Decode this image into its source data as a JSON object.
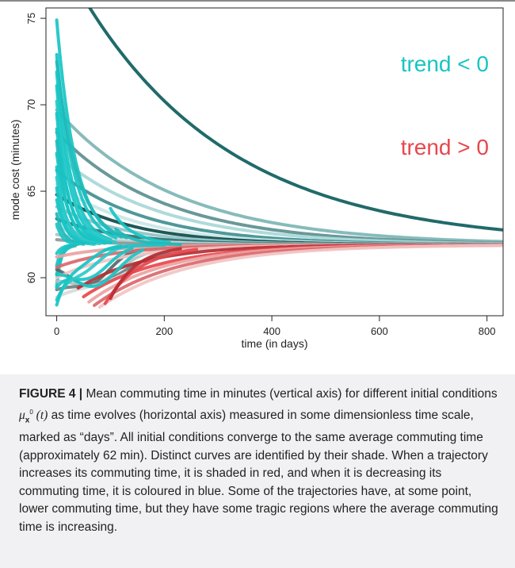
{
  "figure": {
    "caption_lead": "FIGURE 4 |",
    "caption_part1": " Mean commuting time in minutes (vertical axis) for different initial conditions ",
    "caption_math": "μ",
    "caption_math_sub": "x",
    "caption_math_sup": "0",
    "caption_math_arg": " (t)",
    "caption_part2": " as time evolves (horizontal axis) measured in some dimensionless time scale, marked as “days”. All initial conditions converge to the same average commuting time (approximately 62 min). Distinct curves are identified by their shade. When a trajectory increases its commuting time, it is shaded in red, and when it is decreasing its commuting time, it is coloured in blue. Some of the trajectories have, at some point, lower commuting time, but they have some tragic regions where the average commuting time is increasing."
  },
  "chart_data": {
    "type": "line",
    "xlabel": "time (in days)",
    "ylabel": "mode cost (minutes)",
    "xlim": [
      -20,
      830
    ],
    "ylim": [
      57.8,
      75.6
    ],
    "xticks": [
      0,
      200,
      400,
      600,
      800
    ],
    "xtick_labels": [
      "0",
      "200",
      "400",
      "600",
      "800"
    ],
    "yticks": [
      60,
      65,
      70,
      75
    ],
    "ytick_labels": [
      "60",
      "65",
      "70",
      "75"
    ],
    "legend": [
      {
        "label": "trend < 0",
        "color": "#18c4c4"
      },
      {
        "label": "trend > 0",
        "color": "#e8474c"
      }
    ],
    "equilibrium": 61.9,
    "colors": {
      "decreasing": "#18c4c4",
      "increasing": "#e8474c",
      "decreasing_shades": [
        "#0e5d5d",
        "#3f8f91",
        "#7db5b5",
        "#a8d7d7",
        "#c9e6e6"
      ],
      "increasing_shades": [
        "#b52f34",
        "#d9686b",
        "#eaa2a2",
        "#f1c4c4"
      ],
      "neutral_shades": [
        "#5a6666",
        "#8a9a9a",
        "#b2c0c0",
        "#d4dcdc"
      ]
    },
    "series": [
      {
        "kind": "decay",
        "y0": 79.0,
        "x_start": 0,
        "x_end": 830,
        "rate": 0.0036,
        "shade": "#0e5d5d",
        "width": 4
      },
      {
        "kind": "decay",
        "y0": 69.7,
        "x_start": 0,
        "x_end": 830,
        "rate": 0.0045,
        "shade": "#7db5b5",
        "width": 4
      },
      {
        "kind": "decay",
        "y0": 68.4,
        "x_start": 0,
        "x_end": 830,
        "rate": 0.005,
        "shade": "#5c8f90",
        "width": 4
      },
      {
        "kind": "decay",
        "y0": 67.1,
        "x_start": 0,
        "x_end": 830,
        "rate": 0.0052,
        "shade": "#a8d7d7",
        "width": 4
      },
      {
        "kind": "decay",
        "y0": 66.2,
        "x_start": 0,
        "x_end": 830,
        "rate": 0.006,
        "shade": "#3f8f91",
        "width": 4
      },
      {
        "kind": "decay",
        "y0": 65.4,
        "x_start": 0,
        "x_end": 830,
        "rate": 0.0065,
        "shade": "#c9e6e6",
        "width": 4
      },
      {
        "kind": "decay",
        "y0": 64.8,
        "x_start": 0,
        "x_end": 830,
        "rate": 0.007,
        "shade": "#0e4a4a",
        "width": 4
      },
      {
        "kind": "decay",
        "y0": 64.1,
        "x_start": 0,
        "x_end": 830,
        "rate": 0.0075,
        "shade": "#8fc3c3",
        "width": 4
      },
      {
        "kind": "decay",
        "y0": 63.4,
        "x_start": 0,
        "x_end": 830,
        "rate": 0.008,
        "shade": "#2b6f70",
        "width": 4
      },
      {
        "kind": "decay",
        "y0": 62.9,
        "x_start": 0,
        "x_end": 830,
        "rate": 0.009,
        "shade": "#d4dcdc",
        "width": 4
      },
      {
        "kind": "decay",
        "y0": 62.5,
        "x_start": 0,
        "x_end": 830,
        "rate": 0.01,
        "shade": "#b2c0c0",
        "width": 4
      },
      {
        "kind": "decay",
        "y0": 62.2,
        "x_start": 0,
        "x_end": 830,
        "rate": 0.01,
        "shade": "#8a9a9a",
        "width": 4
      },
      {
        "kind": "decay",
        "y0": 74.9,
        "x_start": 0,
        "x_end": 120,
        "rate": 0.028,
        "shade": "#18c4c4",
        "width": 4
      },
      {
        "kind": "decay",
        "y0": 72.9,
        "x_start": 0,
        "x_end": 110,
        "rate": 0.03,
        "shade": "#18c4c4",
        "width": 4
      },
      {
        "kind": "decay",
        "y0": 72.5,
        "x_start": 0,
        "x_end": 130,
        "rate": 0.025,
        "shade": "#22b8b8",
        "width": 4
      },
      {
        "kind": "decay",
        "y0": 71.9,
        "x_start": 0,
        "x_end": 100,
        "rate": 0.035,
        "shade": "#18c4c4",
        "width": 4
      },
      {
        "kind": "decay",
        "y0": 71.1,
        "x_start": 0,
        "x_end": 90,
        "rate": 0.04,
        "shade": "#18c4c4",
        "width": 4
      },
      {
        "kind": "decay",
        "y0": 70.2,
        "x_start": 0,
        "x_end": 110,
        "rate": 0.036,
        "shade": "#2bc9c9",
        "width": 4
      },
      {
        "kind": "decay",
        "y0": 69.5,
        "x_start": 0,
        "x_end": 80,
        "rate": 0.045,
        "shade": "#18c4c4",
        "width": 4
      },
      {
        "kind": "decay",
        "y0": 68.6,
        "x_start": 0,
        "x_end": 100,
        "rate": 0.04,
        "shade": "#18c4c4",
        "width": 4
      },
      {
        "kind": "decay",
        "y0": 67.9,
        "x_start": 0,
        "x_end": 70,
        "rate": 0.05,
        "shade": "#22b8b8",
        "width": 4
      },
      {
        "kind": "decay",
        "y0": 67.2,
        "x_start": 0,
        "x_end": 90,
        "rate": 0.045,
        "shade": "#18c4c4",
        "width": 4
      },
      {
        "kind": "decay",
        "y0": 66.4,
        "x_start": 0,
        "x_end": 60,
        "rate": 0.06,
        "shade": "#18c4c4",
        "width": 4
      },
      {
        "kind": "decay",
        "y0": 65.8,
        "x_start": 0,
        "x_end": 80,
        "rate": 0.05,
        "shade": "#2bc9c9",
        "width": 4
      },
      {
        "kind": "decay",
        "y0": 65.2,
        "x_start": 0,
        "x_end": 55,
        "rate": 0.065,
        "shade": "#18c4c4",
        "width": 4
      },
      {
        "kind": "decay",
        "y0": 64.5,
        "x_start": 0,
        "x_end": 70,
        "rate": 0.06,
        "shade": "#18c4c4",
        "width": 4
      },
      {
        "kind": "decay",
        "y0": 63.7,
        "x_start": 0,
        "x_end": 50,
        "rate": 0.075,
        "shade": "#22b8b8",
        "width": 4
      },
      {
        "kind": "decay",
        "y0": 63.1,
        "x_start": 0,
        "x_end": 40,
        "rate": 0.09,
        "shade": "#18c4c4",
        "width": 4
      },
      {
        "kind": "decay",
        "y0": 61.4,
        "x_start": 0,
        "x_end": 30,
        "rate": 0.1,
        "shade": "#18c4c4",
        "width": 4
      },
      {
        "kind": "decay",
        "y0": 60.7,
        "x_start": 0,
        "x_end": 25,
        "rate": 0.12,
        "shade": "#18c4c4",
        "width": 4
      },
      {
        "kind": "decay",
        "y0": 60.2,
        "x_start": 0,
        "x_end": 35,
        "rate": 0.1,
        "shade": "#22b8b8",
        "width": 4
      },
      {
        "kind": "decay",
        "y0": 59.5,
        "x_start": 0,
        "x_end": 20,
        "rate": 0.13,
        "shade": "#18c4c4",
        "width": 4
      },
      {
        "kind": "dip",
        "y0": 61.0,
        "x_start": 0,
        "x_end": 830,
        "dip": 1.8,
        "t_min": 60,
        "rate": 0.01,
        "shade": "#5a6666",
        "width": 4
      },
      {
        "kind": "dip",
        "y0": 60.2,
        "x_start": 0,
        "x_end": 830,
        "dip": 1.4,
        "t_min": 70,
        "rate": 0.009,
        "shade": "#b2c0c0",
        "width": 4
      },
      {
        "kind": "dip",
        "y0": 59.6,
        "x_start": 0,
        "x_end": 830,
        "dip": 1.0,
        "t_min": 80,
        "rate": 0.008,
        "shade": "#6f8080",
        "width": 4
      },
      {
        "kind": "dip",
        "y0": 59.1,
        "x_start": 0,
        "x_end": 830,
        "dip": 0.8,
        "t_min": 90,
        "rate": 0.008,
        "shade": "#d4dcdc",
        "width": 4
      },
      {
        "kind": "rise",
        "y0": 61.2,
        "x_start": 0,
        "x_end": 830,
        "rate": 0.01,
        "shade": "#eaa2a2",
        "width": 4
      },
      {
        "kind": "rise",
        "y0": 60.6,
        "x_start": 0,
        "x_end": 830,
        "rate": 0.009,
        "shade": "#d9686b",
        "width": 4
      },
      {
        "kind": "rise",
        "y0": 60.0,
        "x_start": 0,
        "x_end": 830,
        "rate": 0.008,
        "shade": "#f1c4c4",
        "width": 4
      },
      {
        "kind": "rise",
        "y0": 59.4,
        "x_start": 40,
        "x_end": 830,
        "rate": 0.008,
        "shade": "#b52f34",
        "width": 4
      },
      {
        "kind": "rise",
        "y0": 58.9,
        "x_start": 50,
        "x_end": 830,
        "rate": 0.007,
        "shade": "#e8474c",
        "width": 4
      },
      {
        "kind": "rise",
        "y0": 58.6,
        "x_start": 60,
        "x_end": 830,
        "rate": 0.007,
        "shade": "#eaa2a2",
        "width": 4
      },
      {
        "kind": "rise",
        "y0": 58.4,
        "x_start": 70,
        "x_end": 830,
        "rate": 0.0065,
        "shade": "#d9686b",
        "width": 4
      },
      {
        "kind": "rise",
        "y0": 58.3,
        "x_start": 80,
        "x_end": 830,
        "rate": 0.006,
        "shade": "#f1c4c4",
        "width": 4
      },
      {
        "kind": "rise",
        "y0": 58.5,
        "x_start": 90,
        "x_end": 260,
        "rate": 0.015,
        "shade": "#e8474c",
        "width": 4
      },
      {
        "kind": "rise",
        "y0": 58.8,
        "x_start": 100,
        "x_end": 230,
        "rate": 0.02,
        "shade": "#b52f34",
        "width": 4
      },
      {
        "kind": "dip",
        "y0": 60.8,
        "x_start": 0,
        "x_end": 160,
        "dip": 2.2,
        "t_min": 70,
        "rate": 0.025,
        "shade": "#18c4c4",
        "width": 4
      },
      {
        "kind": "dip",
        "y0": 59.9,
        "x_start": 0,
        "x_end": 140,
        "dip": 1.6,
        "t_min": 60,
        "rate": 0.03,
        "shade": "#18c4c4",
        "width": 4
      },
      {
        "kind": "dip",
        "y0": 59.0,
        "x_start": 0,
        "x_end": 130,
        "dip": 1.0,
        "t_min": 50,
        "rate": 0.03,
        "shade": "#2bc9c9",
        "width": 4
      },
      {
        "kind": "dip",
        "y0": 58.6,
        "x_start": 0,
        "x_end": 120,
        "dip": 0.6,
        "t_min": 45,
        "rate": 0.035,
        "shade": "#18c4c4",
        "width": 4
      },
      {
        "kind": "decay",
        "y0": 64.0,
        "x_start": 100,
        "x_end": 210,
        "rate": 0.025,
        "shade": "#18c4c4",
        "width": 4
      },
      {
        "kind": "decay",
        "y0": 62.8,
        "x_start": 110,
        "x_end": 230,
        "rate": 0.03,
        "shade": "#22b8b8",
        "width": 4
      },
      {
        "kind": "decay",
        "y0": 61.6,
        "x_start": 90,
        "x_end": 200,
        "rate": 0.03,
        "shade": "#18c4c4",
        "width": 4
      }
    ]
  }
}
